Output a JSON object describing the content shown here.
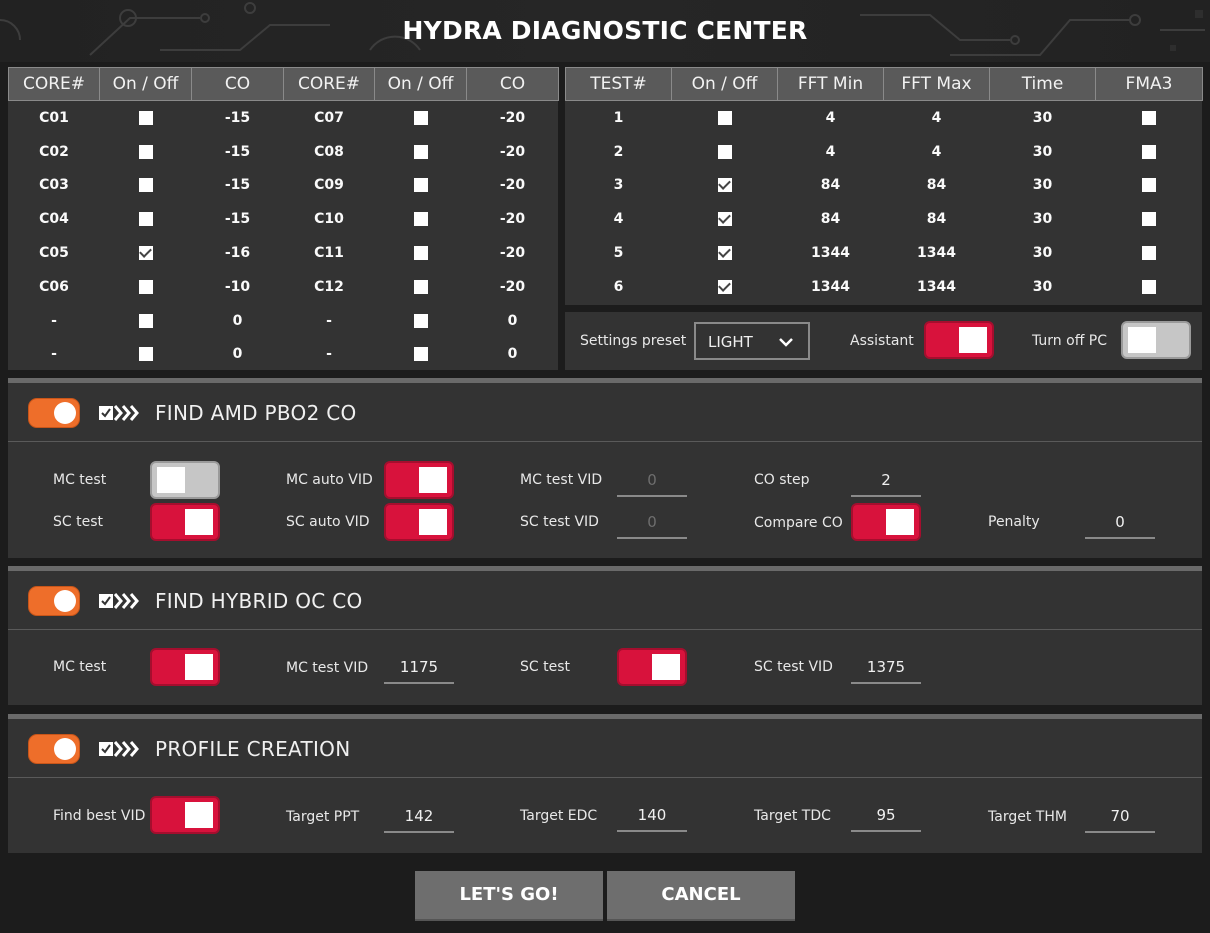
{
  "title": "HYDRA DIAGNOSTIC CENTER",
  "cores_table": {
    "headers": [
      "CORE#",
      "On / Off",
      "CO",
      "CORE#",
      "On / Off",
      "CO"
    ],
    "rows": [
      {
        "a_core": "C01",
        "a_on": false,
        "a_co": "-15",
        "b_core": "C07",
        "b_on": false,
        "b_co": "-20"
      },
      {
        "a_core": "C02",
        "a_on": false,
        "a_co": "-15",
        "b_core": "C08",
        "b_on": false,
        "b_co": "-20"
      },
      {
        "a_core": "C03",
        "a_on": false,
        "a_co": "-15",
        "b_core": "C09",
        "b_on": false,
        "b_co": "-20"
      },
      {
        "a_core": "C04",
        "a_on": false,
        "a_co": "-15",
        "b_core": "C10",
        "b_on": false,
        "b_co": "-20"
      },
      {
        "a_core": "C05",
        "a_on": true,
        "a_co": "-16",
        "b_core": "C11",
        "b_on": false,
        "b_co": "-20"
      },
      {
        "a_core": "C06",
        "a_on": false,
        "a_co": "-10",
        "b_core": "C12",
        "b_on": false,
        "b_co": "-20"
      },
      {
        "a_core": "-",
        "a_on": false,
        "a_co": "0",
        "b_core": "-",
        "b_on": false,
        "b_co": "0"
      },
      {
        "a_core": "-",
        "a_on": false,
        "a_co": "0",
        "b_core": "-",
        "b_on": false,
        "b_co": "0"
      }
    ]
  },
  "tests_table": {
    "headers": [
      "TEST#",
      "On / Off",
      "FFT Min",
      "FFT Max",
      "Time",
      "FMA3"
    ],
    "rows": [
      {
        "test": "1",
        "on": false,
        "fft_min": "4",
        "fft_max": "4",
        "time": "30",
        "fma3": false
      },
      {
        "test": "2",
        "on": false,
        "fft_min": "4",
        "fft_max": "4",
        "time": "30",
        "fma3": false
      },
      {
        "test": "3",
        "on": true,
        "fft_min": "84",
        "fft_max": "84",
        "time": "30",
        "fma3": false
      },
      {
        "test": "4",
        "on": true,
        "fft_min": "84",
        "fft_max": "84",
        "time": "30",
        "fma3": false
      },
      {
        "test": "5",
        "on": true,
        "fft_min": "1344",
        "fft_max": "1344",
        "time": "30",
        "fma3": false
      },
      {
        "test": "6",
        "on": true,
        "fft_min": "1344",
        "fft_max": "1344",
        "time": "30",
        "fma3": false
      }
    ]
  },
  "settings": {
    "preset_label": "Settings preset",
    "preset_value": "LIGHT",
    "assistant_label": "Assistant",
    "assistant_on": true,
    "turnoff_label": "Turn off PC",
    "turnoff_on": false
  },
  "pbo": {
    "title": "FIND AMD PBO2 CO",
    "enabled": true,
    "mc_test_label": "MC test",
    "mc_test_on": false,
    "sc_test_label": "SC test",
    "sc_test_on": true,
    "mc_auto_vid_label": "MC auto VID",
    "mc_auto_vid_on": true,
    "sc_auto_vid_label": "SC auto VID",
    "sc_auto_vid_on": true,
    "mc_test_vid_label": "MC test VID",
    "mc_test_vid": "0",
    "sc_test_vid_label": "SC test VID",
    "sc_test_vid": "0",
    "co_step_label": "CO step",
    "co_step": "2",
    "compare_co_label": "Compare CO",
    "compare_co_on": true,
    "penalty_label": "Penalty",
    "penalty": "0"
  },
  "hybrid": {
    "title": "FIND HYBRID OC CO",
    "enabled": true,
    "mc_test_label": "MC test",
    "mc_test_on": true,
    "mc_test_vid_label": "MC test VID",
    "mc_test_vid": "1175",
    "sc_test_label": "SC test",
    "sc_test_on": true,
    "sc_test_vid_label": "SC test VID",
    "sc_test_vid": "1375"
  },
  "profile": {
    "title": "PROFILE CREATION",
    "enabled": true,
    "find_best_vid_label": "Find best VID",
    "find_best_vid_on": true,
    "target_ppt_label": "Target PPT",
    "target_ppt": "142",
    "target_edc_label": "Target EDC",
    "target_edc": "140",
    "target_tdc_label": "Target TDC",
    "target_tdc": "95",
    "target_thm_label": "Target THM",
    "target_thm": "70"
  },
  "buttons": {
    "go": "LET'S GO!",
    "cancel": "CANCEL"
  },
  "colors": {
    "accent_red": "#d8123c",
    "accent_orange": "#ee6e2a",
    "panel": "#333333"
  }
}
